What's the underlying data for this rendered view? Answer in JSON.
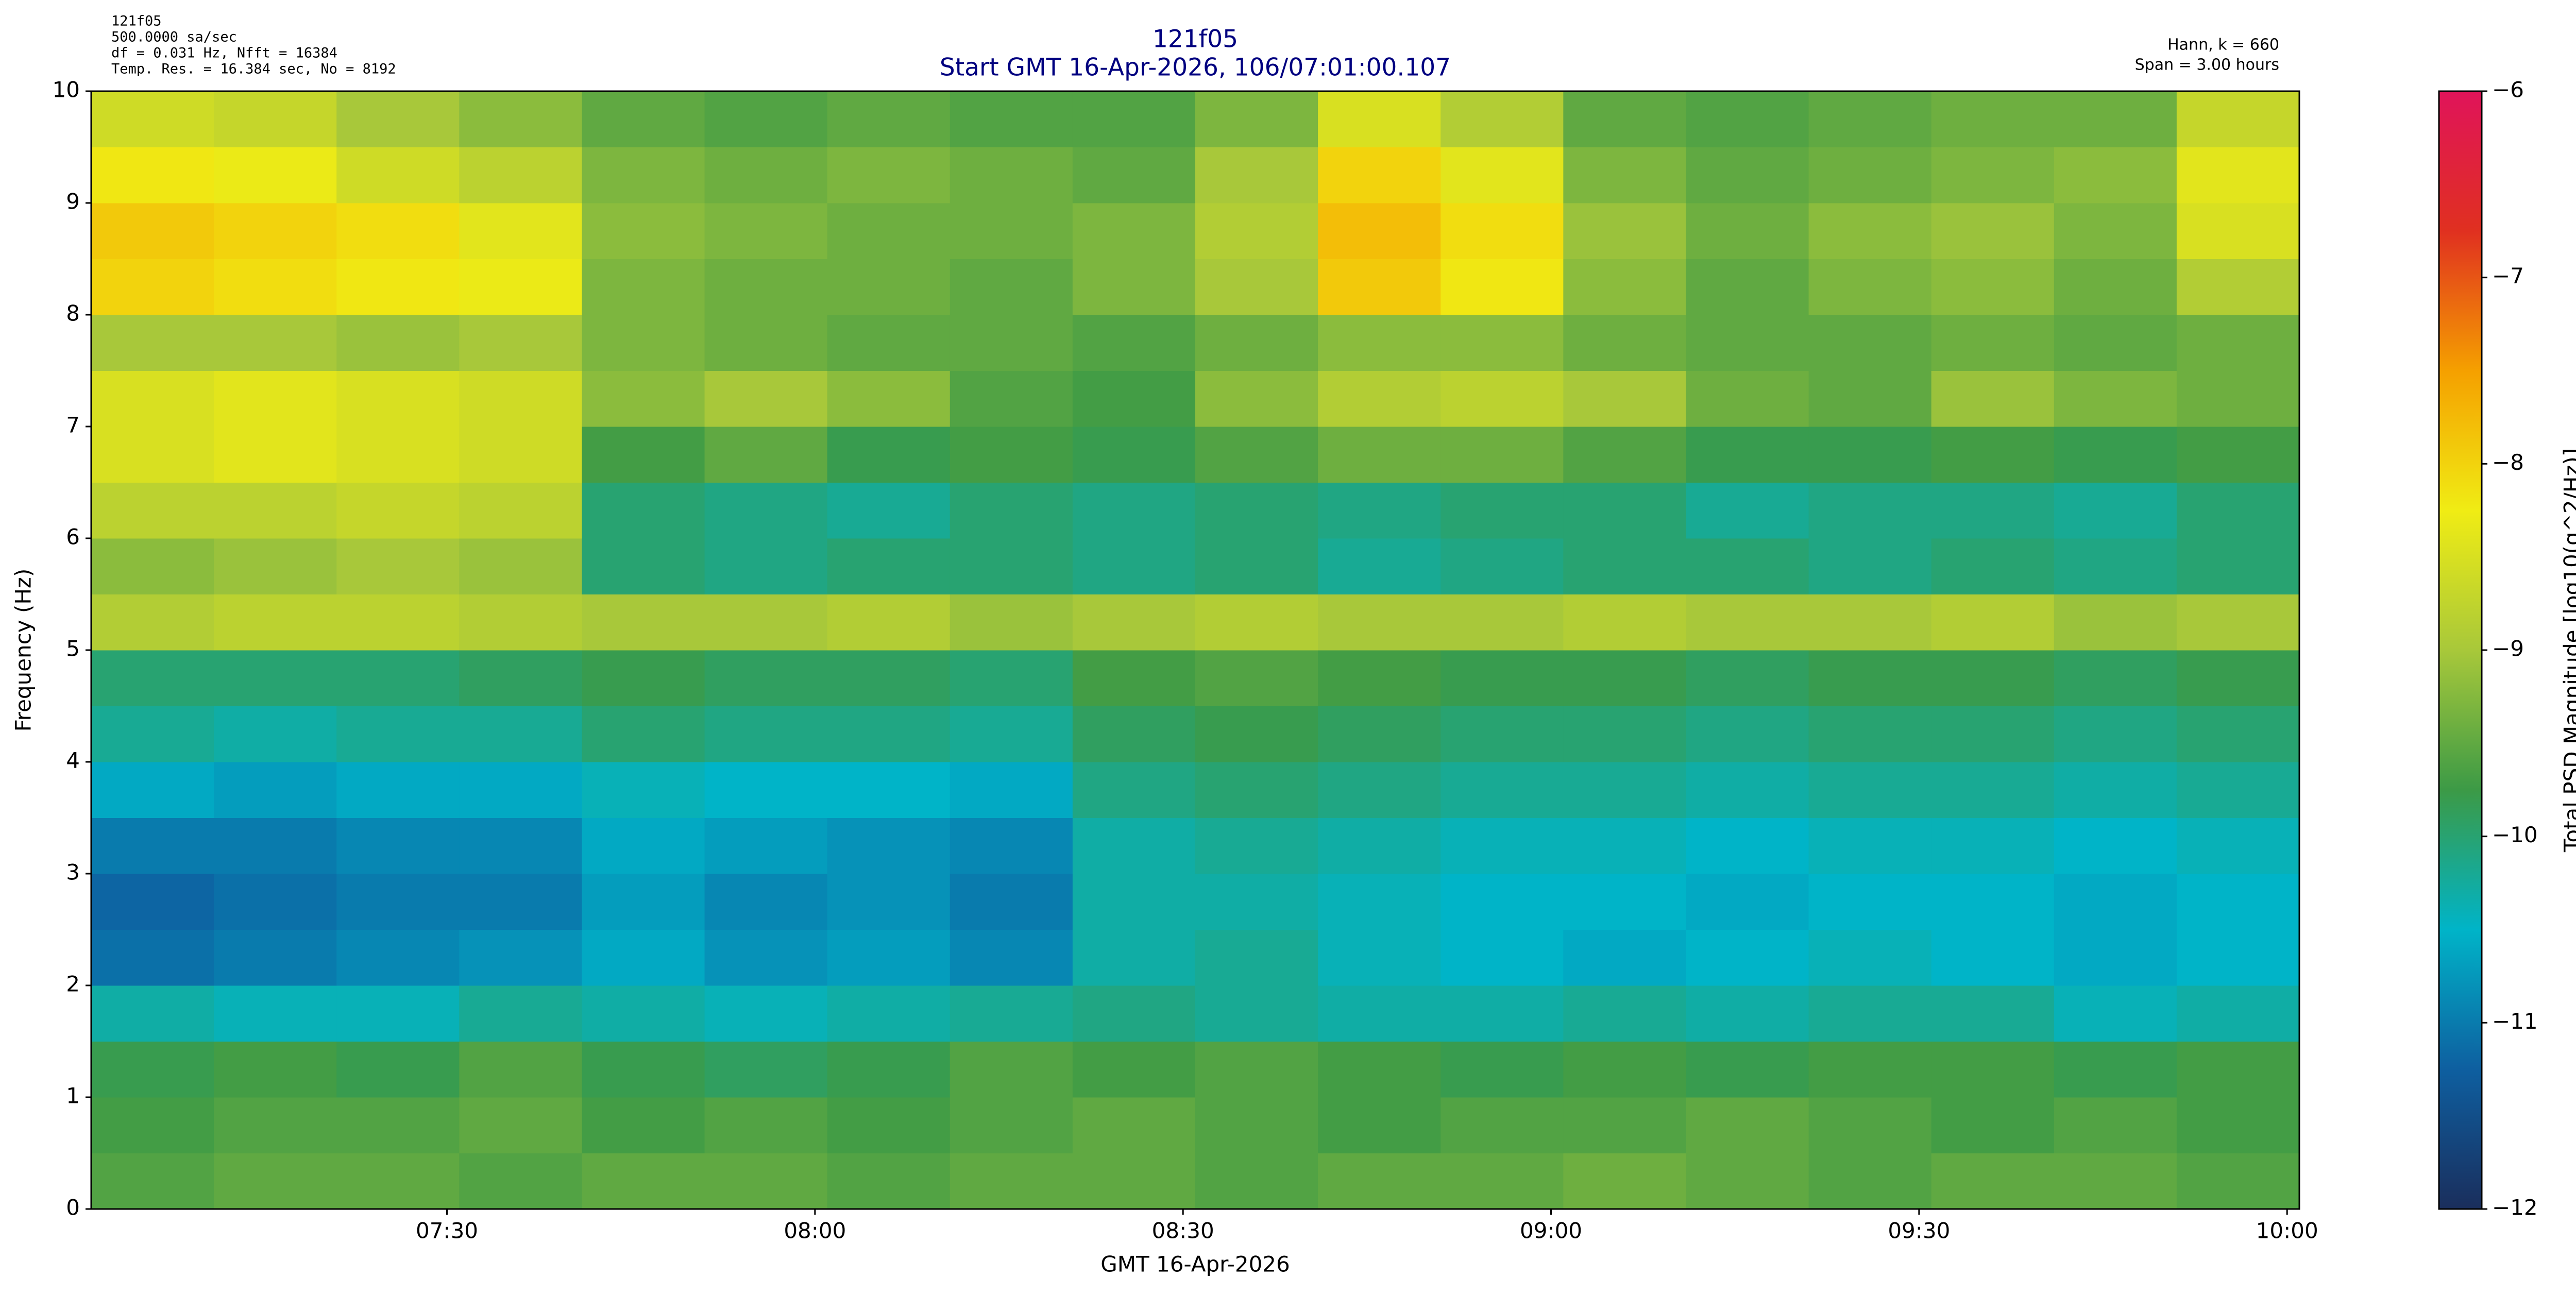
{
  "chart_data": {
    "type": "heatmap",
    "title": "121f05",
    "subtitle": "Start GMT 16-Apr-2026, 106/07:01:00.107",
    "info_left": [
      "121f05",
      "500.0000 sa/sec",
      "df = 0.031 Hz,  Nfft = 16384",
      "Temp. Res. = 16.384 sec, No = 8192"
    ],
    "info_right": [
      "Hann, k = 660",
      "Span = 3.00 hours"
    ],
    "x_label": "GMT 16-Apr-2026",
    "y_label": "Frequency (Hz)",
    "colorbar_label": "Total PSD Magnitude [log10(g^2/Hz)]",
    "xlim": [
      "07:01:00",
      "10:01:00"
    ],
    "xticks": [
      "07:30",
      "08:00",
      "08:30",
      "09:00",
      "09:30",
      "10:00"
    ],
    "ylim": [
      0,
      10
    ],
    "yticks": [
      0,
      1,
      2,
      3,
      4,
      5,
      6,
      7,
      8,
      9,
      10
    ],
    "clim": [
      -12,
      -6
    ],
    "cticks": [
      {
        "value": -12,
        "label": "−12"
      },
      {
        "value": -11,
        "label": "−11"
      },
      {
        "value": -10,
        "label": "−10"
      },
      {
        "value": -9,
        "label": "−9"
      },
      {
        "value": -8,
        "label": "−8"
      },
      {
        "value": -7,
        "label": "−7"
      },
      {
        "value": -6,
        "label": "−6"
      }
    ],
    "colorscale": [
      "#1a2e5c",
      "#0e5fa0",
      "#00b4c8",
      "#3c9a46",
      "#a8c83a",
      "#f0ec14",
      "#f5a000",
      "#e03020",
      "#e0145a"
    ],
    "x": [
      "07:01",
      "07:11",
      "07:21",
      "07:31",
      "07:41",
      "07:51",
      "08:01",
      "08:11",
      "08:21",
      "08:31",
      "08:41",
      "08:51",
      "09:01",
      "09:11",
      "09:21",
      "09:31",
      "09:41",
      "09:51"
    ],
    "y": [
      0,
      0.5,
      1,
      1.5,
      2,
      2.5,
      3,
      3.5,
      4,
      4.5,
      5,
      5.5,
      6,
      6.5,
      7,
      7.5,
      8,
      8.5,
      9,
      9.5
    ],
    "z": [
      [
        -9.6,
        -9.5,
        -9.5,
        -9.6,
        -9.5,
        -9.5,
        -9.6,
        -9.5,
        -9.5,
        -9.6,
        -9.5,
        -9.5,
        -9.4,
        -9.5,
        -9.6,
        -9.5,
        -9.5,
        -9.6
      ],
      [
        -9.7,
        -9.6,
        -9.6,
        -9.5,
        -9.7,
        -9.6,
        -9.7,
        -9.6,
        -9.5,
        -9.6,
        -9.7,
        -9.6,
        -9.6,
        -9.5,
        -9.6,
        -9.7,
        -9.6,
        -9.7
      ],
      [
        -9.8,
        -9.7,
        -9.8,
        -9.6,
        -9.8,
        -9.9,
        -9.8,
        -9.6,
        -9.7,
        -9.6,
        -9.7,
        -9.8,
        -9.7,
        -9.8,
        -9.7,
        -9.7,
        -9.8,
        -9.7
      ],
      [
        -10.3,
        -10.4,
        -10.4,
        -10.2,
        -10.3,
        -10.4,
        -10.3,
        -10.2,
        -10.1,
        -10.2,
        -10.3,
        -10.3,
        -10.2,
        -10.3,
        -10.2,
        -10.2,
        -10.4,
        -10.3
      ],
      [
        -11.1,
        -11.0,
        -10.9,
        -10.8,
        -10.6,
        -10.8,
        -10.7,
        -10.9,
        -10.3,
        -10.2,
        -10.4,
        -10.5,
        -10.6,
        -10.5,
        -10.4,
        -10.5,
        -10.6,
        -10.5
      ],
      [
        -11.2,
        -11.1,
        -11.0,
        -11.0,
        -10.7,
        -10.9,
        -10.8,
        -11.0,
        -10.3,
        -10.3,
        -10.4,
        -10.5,
        -10.5,
        -10.6,
        -10.5,
        -10.5,
        -10.6,
        -10.5
      ],
      [
        -11.0,
        -11.0,
        -10.9,
        -10.9,
        -10.6,
        -10.7,
        -10.8,
        -10.9,
        -10.3,
        -10.2,
        -10.3,
        -10.4,
        -10.4,
        -10.5,
        -10.4,
        -10.4,
        -10.5,
        -10.4
      ],
      [
        -10.6,
        -10.7,
        -10.6,
        -10.6,
        -10.4,
        -10.5,
        -10.5,
        -10.6,
        -10.1,
        -10.0,
        -10.1,
        -10.2,
        -10.2,
        -10.3,
        -10.2,
        -10.2,
        -10.3,
        -10.2
      ],
      [
        -10.2,
        -10.3,
        -10.2,
        -10.2,
        -10.0,
        -10.1,
        -10.1,
        -10.2,
        -9.9,
        -9.8,
        -9.9,
        -10.0,
        -10.0,
        -10.1,
        -10.0,
        -10.0,
        -10.1,
        -10.0
      ],
      [
        -10.0,
        -10.0,
        -10.0,
        -9.9,
        -9.8,
        -9.9,
        -9.9,
        -10.0,
        -9.7,
        -9.6,
        -9.7,
        -9.8,
        -9.8,
        -9.9,
        -9.8,
        -9.8,
        -9.9,
        -9.8
      ],
      [
        -8.9,
        -8.8,
        -8.8,
        -8.9,
        -9.0,
        -9.0,
        -8.9,
        -9.1,
        -9.0,
        -8.9,
        -9.0,
        -9.0,
        -8.9,
        -9.0,
        -9.0,
        -8.9,
        -9.1,
        -9.0
      ],
      [
        -9.2,
        -9.1,
        -9.0,
        -9.1,
        -10.0,
        -10.1,
        -10.0,
        -10.0,
        -10.1,
        -10.0,
        -10.2,
        -10.1,
        -10.0,
        -10.0,
        -10.1,
        -10.0,
        -10.1,
        -10.0
      ],
      [
        -8.8,
        -8.8,
        -8.7,
        -8.8,
        -10.0,
        -10.1,
        -10.2,
        -10.0,
        -10.1,
        -10.0,
        -10.1,
        -10.0,
        -10.0,
        -10.2,
        -10.1,
        -10.1,
        -10.2,
        -10.0
      ],
      [
        -8.5,
        -8.4,
        -8.5,
        -8.6,
        -9.7,
        -9.5,
        -9.8,
        -9.7,
        -9.8,
        -9.6,
        -9.4,
        -9.4,
        -9.6,
        -9.8,
        -9.8,
        -9.7,
        -9.8,
        -9.7
      ],
      [
        -8.5,
        -8.4,
        -8.5,
        -8.6,
        -9.2,
        -9.0,
        -9.2,
        -9.6,
        -9.7,
        -9.2,
        -8.9,
        -8.8,
        -9.0,
        -9.4,
        -9.5,
        -9.1,
        -9.3,
        -9.4
      ],
      [
        -9.0,
        -9.0,
        -9.1,
        -9.0,
        -9.3,
        -9.4,
        -9.5,
        -9.5,
        -9.6,
        -9.4,
        -9.2,
        -9.2,
        -9.4,
        -9.5,
        -9.5,
        -9.4,
        -9.5,
        -9.4
      ],
      [
        -8.0,
        -8.1,
        -8.2,
        -8.3,
        -9.3,
        -9.4,
        -9.4,
        -9.5,
        -9.3,
        -9.0,
        -7.9,
        -8.2,
        -9.2,
        -9.5,
        -9.3,
        -9.2,
        -9.4,
        -8.9
      ],
      [
        -7.9,
        -8.0,
        -8.1,
        -8.4,
        -9.2,
        -9.3,
        -9.4,
        -9.4,
        -9.3,
        -8.9,
        -7.8,
        -8.1,
        -9.1,
        -9.4,
        -9.2,
        -9.1,
        -9.3,
        -8.5
      ],
      [
        -8.2,
        -8.3,
        -8.6,
        -8.8,
        -9.3,
        -9.4,
        -9.3,
        -9.4,
        -9.5,
        -9.0,
        -8.0,
        -8.4,
        -9.3,
        -9.5,
        -9.4,
        -9.3,
        -9.2,
        -8.4
      ],
      [
        -8.6,
        -8.7,
        -9.0,
        -9.2,
        -9.5,
        -9.6,
        -9.5,
        -9.6,
        -9.6,
        -9.3,
        -8.5,
        -8.9,
        -9.5,
        -9.6,
        -9.5,
        -9.4,
        -9.4,
        -8.7
      ]
    ]
  }
}
